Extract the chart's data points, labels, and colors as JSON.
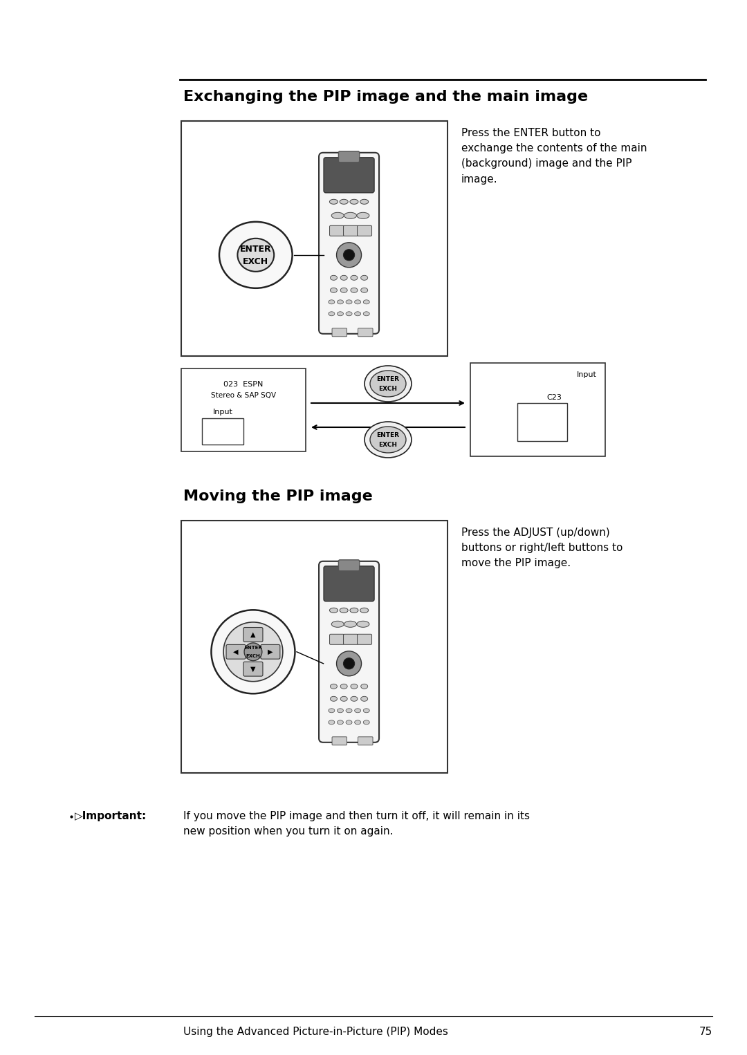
{
  "bg_color": "#ffffff",
  "page_width": 10.8,
  "page_height": 15.26,
  "title1": "Exchanging the PIP image and the main image",
  "title2": "Moving the PIP image",
  "section1_desc": "Press the ENTER button to\nexchange the contents of the main\n(background) image and the PIP\nimage.",
  "section2_desc": "Press the ADJUST (up/down)\nbuttons or right/left buttons to\nmove the PIP image.",
  "important_label": "▷Important:",
  "important_text": "If you move the PIP image and then turn it off, it will remain in its\nnew position when you turn it on again.",
  "footer_text": "Using the Advanced Picture-in-Picture (PIP) Modes",
  "footer_page": "75"
}
